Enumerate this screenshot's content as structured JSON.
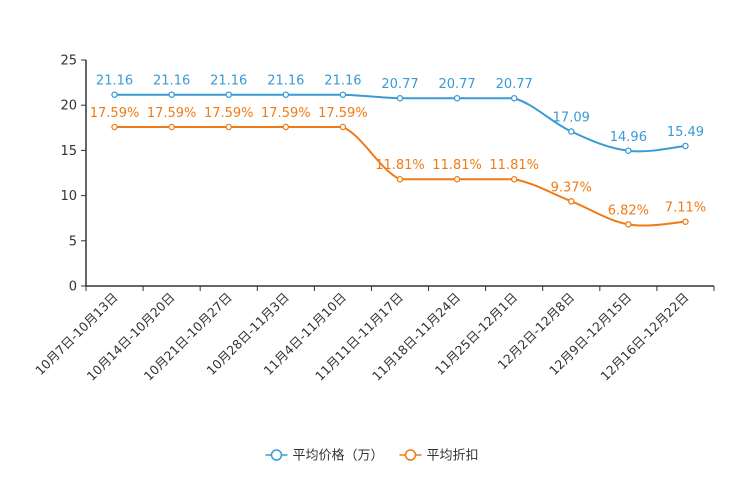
{
  "colors": {
    "price": "#3a9ad4",
    "discount": "#f07b16",
    "axis": "#333333"
  },
  "chart_data": {
    "type": "line",
    "title": "",
    "xlabel": "",
    "ylabel": "",
    "ylim": [
      0,
      25
    ],
    "yticks": [
      0,
      5,
      10,
      15,
      20,
      25
    ],
    "grid": false,
    "legend_position": "bottom-center",
    "categories": [
      "10月7日-10月13日",
      "10月14日-10月20日",
      "10月21日-10月27日",
      "10月28日-11月3日",
      "11月4日-11月10日",
      "11月11日-11月17日",
      "11月18日-11月24日",
      "11月25日-12月1日",
      "12月2日-12月8日",
      "12月9日-12月15日",
      "12月16日-12月22日"
    ],
    "series": [
      {
        "name": "平均价格（万）",
        "color": "#3a9ad4",
        "values": [
          21.16,
          21.16,
          21.16,
          21.16,
          21.16,
          20.77,
          20.77,
          20.77,
          17.09,
          14.96,
          15.49
        ],
        "labels": [
          "21.16",
          "21.16",
          "21.16",
          "21.16",
          "21.16",
          "20.77",
          "20.77",
          "20.77",
          "17.09",
          "14.96",
          "15.49"
        ]
      },
      {
        "name": "平均折扣",
        "color": "#f07b16",
        "values": [
          17.59,
          17.59,
          17.59,
          17.59,
          17.59,
          11.81,
          11.81,
          11.81,
          9.37,
          6.82,
          7.11
        ],
        "labels": [
          "17.59%",
          "17.59%",
          "17.59%",
          "17.59%",
          "17.59%",
          "11.81%",
          "11.81%",
          "11.81%",
          "9.37%",
          "6.82%",
          "7.11%"
        ]
      }
    ]
  }
}
